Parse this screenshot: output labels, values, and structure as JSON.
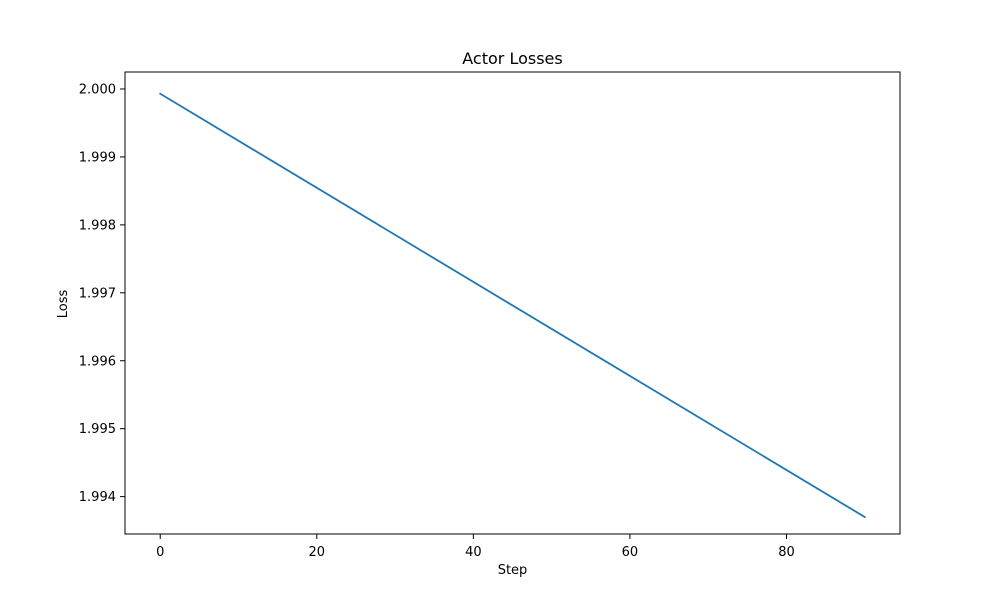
{
  "chart_data": {
    "type": "line",
    "title": "Actor Losses",
    "xlabel": "Step",
    "ylabel": "Loss",
    "xlim": [
      -4.5,
      94.5
    ],
    "ylim": [
      1.99345,
      2.00025
    ],
    "x_ticks": [
      0,
      20,
      40,
      60,
      80
    ],
    "x_tick_labels": [
      "0",
      "20",
      "40",
      "60",
      "80"
    ],
    "y_ticks": [
      1.994,
      1.995,
      1.996,
      1.997,
      1.998,
      1.999,
      2.0
    ],
    "y_tick_labels": [
      "1.994",
      "1.995",
      "1.996",
      "1.997",
      "1.998",
      "1.999",
      "2.000"
    ],
    "grid": false,
    "legend": "none",
    "series": [
      {
        "color": "#1f77b4",
        "x": [
          0,
          90
        ],
        "y": [
          1.99993,
          1.9937
        ]
      }
    ]
  }
}
